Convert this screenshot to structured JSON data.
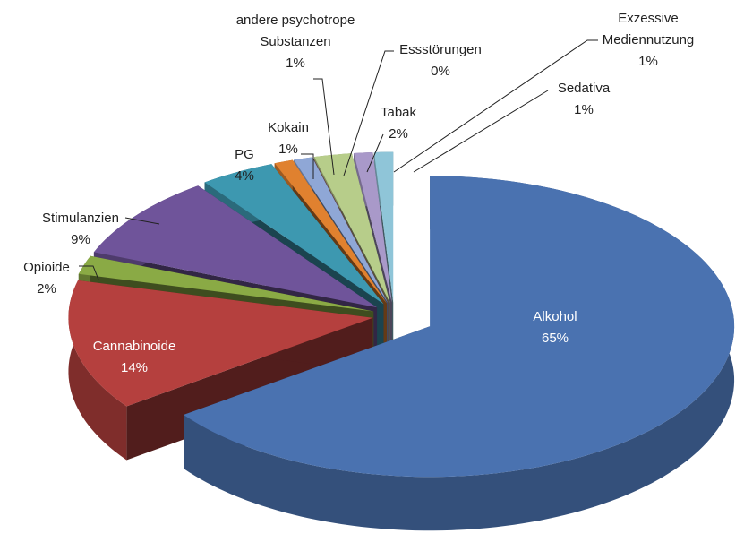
{
  "chart_data": {
    "type": "pie3d",
    "categories": [
      "Alkohol",
      "Cannabinoide",
      "Opioide",
      "Stimulanzien",
      "PG",
      "Kokain",
      "andere psychotrope Substanzen",
      "Essstörungen",
      "Tabak",
      "Exzessive Mediennutzung",
      "Sedativa"
    ],
    "values": [
      65,
      14,
      2,
      9,
      4,
      1,
      1,
      0,
      2,
      1,
      1
    ],
    "value_labels": [
      "65%",
      "14%",
      "2%",
      "9%",
      "4%",
      "1%",
      "1%",
      "0%",
      "2%",
      "1%",
      "1%"
    ],
    "colors": [
      "#4a72b0",
      "#b5403e",
      "#8aaa45",
      "#6f549a",
      "#3d98b0",
      "#e0812f",
      "#8fa7d6",
      "#d98c8a",
      "#b7cd8a",
      "#a999c9",
      "#8fc5d8"
    ]
  }
}
